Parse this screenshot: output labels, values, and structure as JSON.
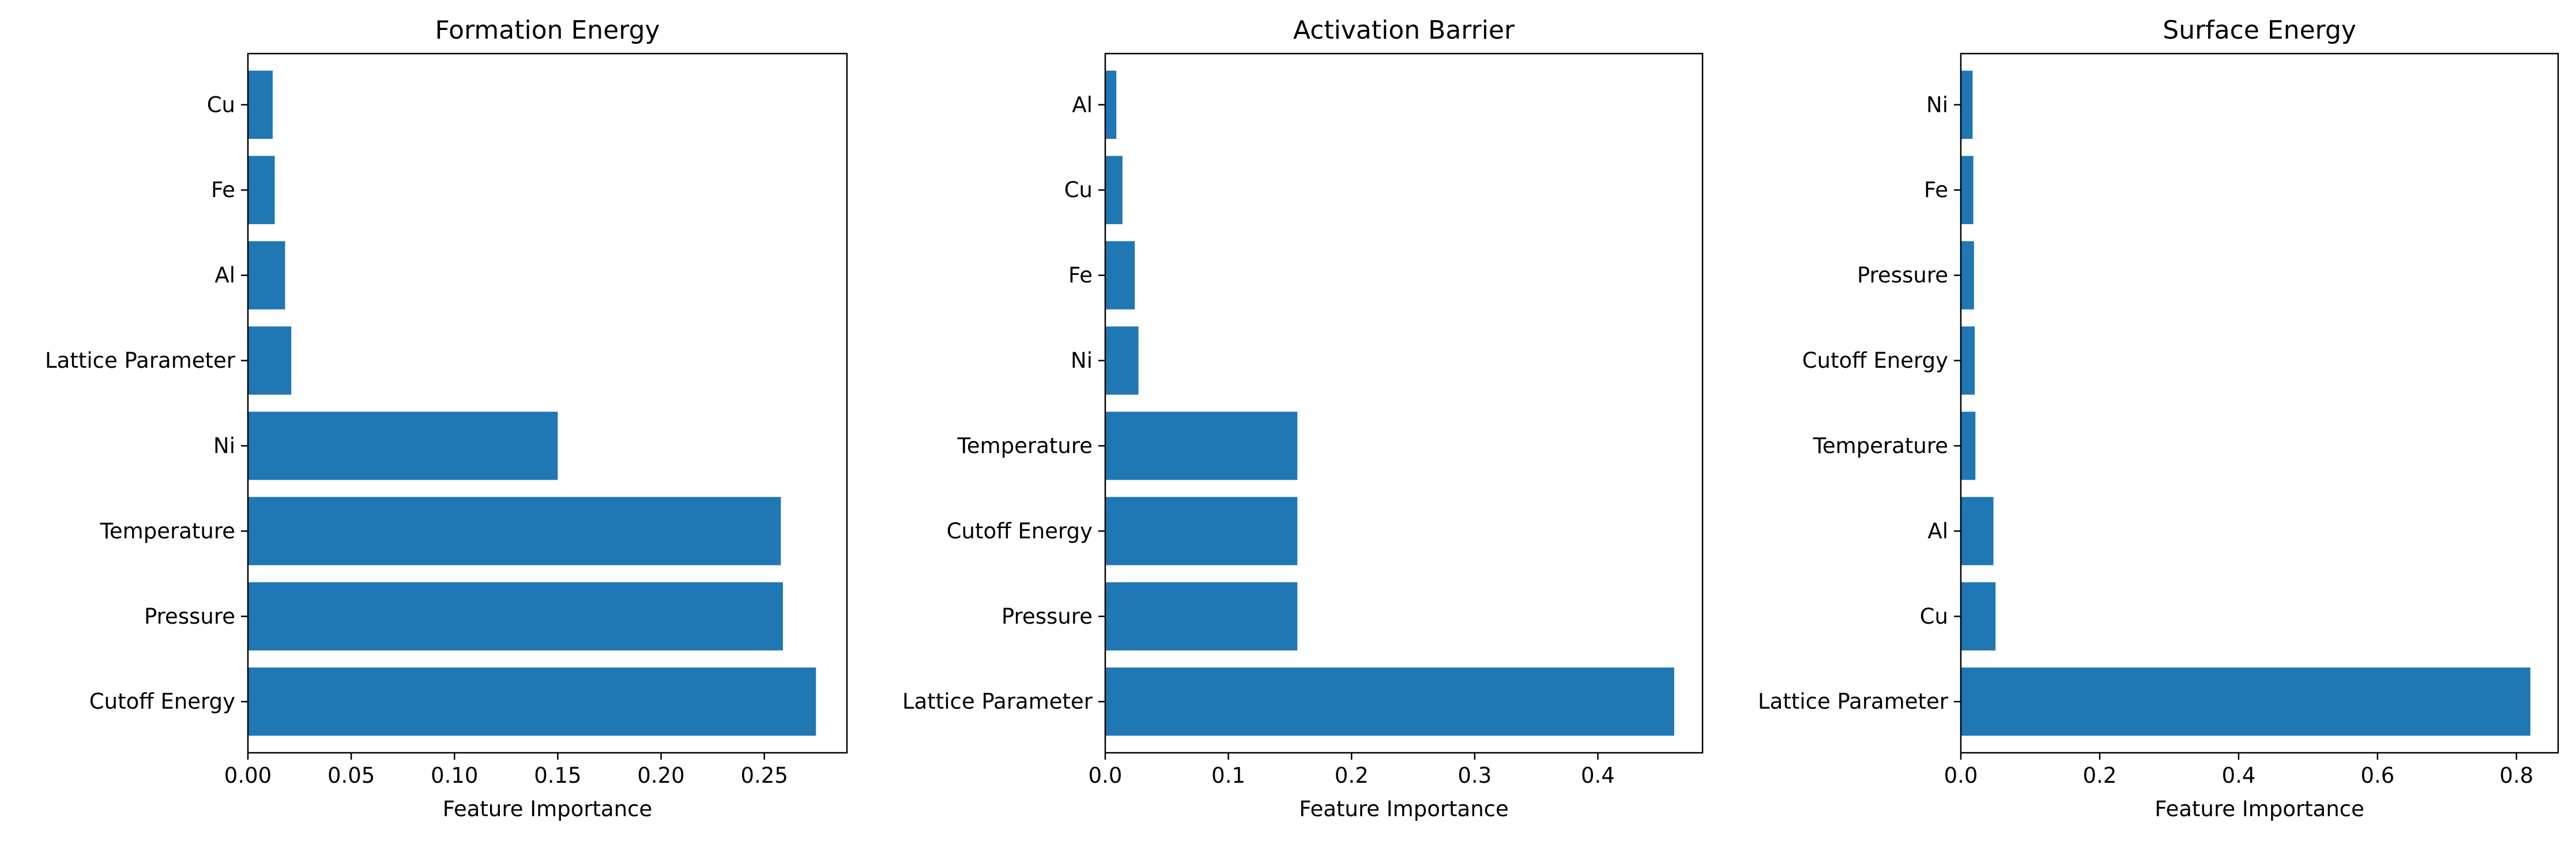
{
  "chart_data": [
    {
      "type": "bar",
      "orientation": "horizontal",
      "title": "Formation Energy",
      "xlabel": "Feature Importance",
      "ylabel": "",
      "categories": [
        "Cutoff Energy",
        "Pressure",
        "Temperature",
        "Ni",
        "Lattice Parameter",
        "Al",
        "Fe",
        "Cu"
      ],
      "values": [
        0.275,
        0.259,
        0.258,
        0.15,
        0.021,
        0.018,
        0.013,
        0.012
      ],
      "xlim": [
        0,
        0.29
      ],
      "xticks": [
        0,
        0.05,
        0.1,
        0.15,
        0.2,
        0.25
      ],
      "xtick_labels": [
        "0.00",
        "0.05",
        "0.10",
        "0.15",
        "0.20",
        "0.25"
      ],
      "grid": false,
      "color": "#1f77b4"
    },
    {
      "type": "bar",
      "orientation": "horizontal",
      "title": "Activation Barrier",
      "xlabel": "Feature Importance",
      "ylabel": "",
      "categories": [
        "Lattice Parameter",
        "Pressure",
        "Cutoff Energy",
        "Temperature",
        "Ni",
        "Fe",
        "Cu",
        "Al"
      ],
      "values": [
        0.462,
        0.156,
        0.156,
        0.156,
        0.027,
        0.024,
        0.014,
        0.009
      ],
      "xlim": [
        0,
        0.485
      ],
      "xticks": [
        0,
        0.1,
        0.2,
        0.3,
        0.4
      ],
      "xtick_labels": [
        "0.0",
        "0.1",
        "0.2",
        "0.3",
        "0.4"
      ],
      "grid": false,
      "color": "#1f77b4"
    },
    {
      "type": "bar",
      "orientation": "horizontal",
      "title": "Surface Energy",
      "xlabel": "Feature Importance",
      "ylabel": "",
      "categories": [
        "Lattice Parameter",
        "Cu",
        "Al",
        "Temperature",
        "Cutoff Energy",
        "Pressure",
        "Fe",
        "Ni"
      ],
      "values": [
        0.82,
        0.05,
        0.047,
        0.021,
        0.02,
        0.019,
        0.018,
        0.017
      ],
      "xlim": [
        0,
        0.86
      ],
      "xticks": [
        0,
        0.2,
        0.4,
        0.6,
        0.8
      ],
      "xtick_labels": [
        "0.0",
        "0.2",
        "0.4",
        "0.6",
        "0.8"
      ],
      "grid": false,
      "color": "#1f77b4"
    }
  ]
}
